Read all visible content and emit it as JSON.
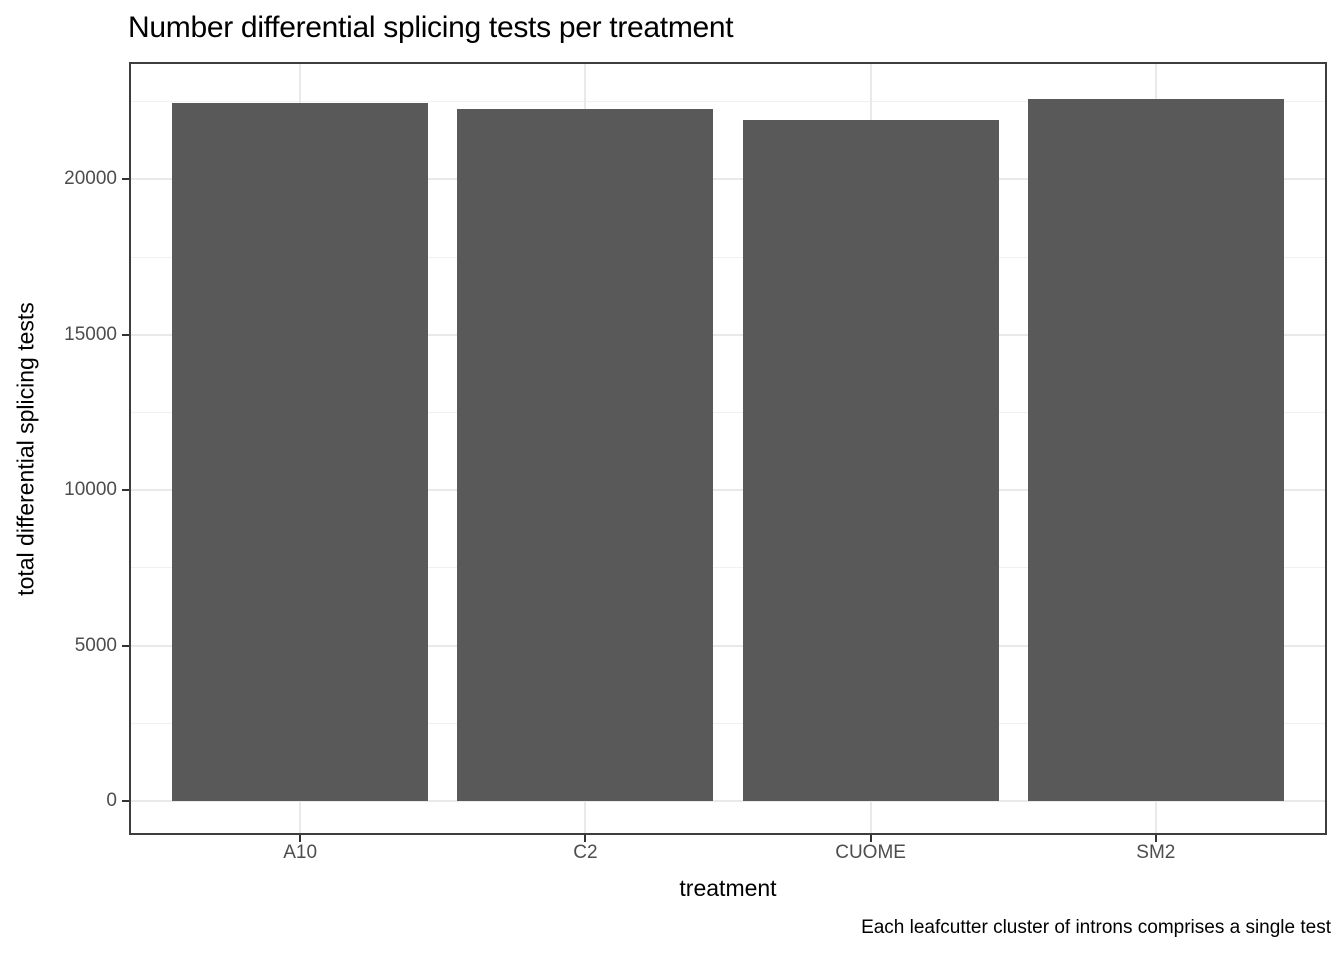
{
  "chart_data": {
    "type": "bar",
    "title": "Number differential splicing tests per treatment",
    "xlabel": "treatment",
    "ylabel": "total differential splicing tests",
    "caption": "Each leafcutter cluster of introns comprises a single test",
    "categories": [
      "A10",
      "C2",
      "CUOME",
      "SM2"
    ],
    "values": [
      22450,
      22250,
      21900,
      22600
    ],
    "y_ticks": [
      0,
      5000,
      10000,
      15000,
      20000
    ],
    "y_minor_ticks": [
      2500,
      7500,
      12500,
      17500,
      22500
    ],
    "ylim": [
      0,
      23800
    ],
    "grid": "major+minor horizontal, major vertical at categories",
    "legend": "none",
    "colors": {
      "bar_fill": "#595959",
      "panel_border": "#3d3d3d",
      "tick_mark": "#333333",
      "gridline_major": "#e9e9e9",
      "gridline_minor": "#f1f1f1",
      "axis_text": "#4d4d4d",
      "title_text": "#000000",
      "background": "#ffffff"
    }
  }
}
